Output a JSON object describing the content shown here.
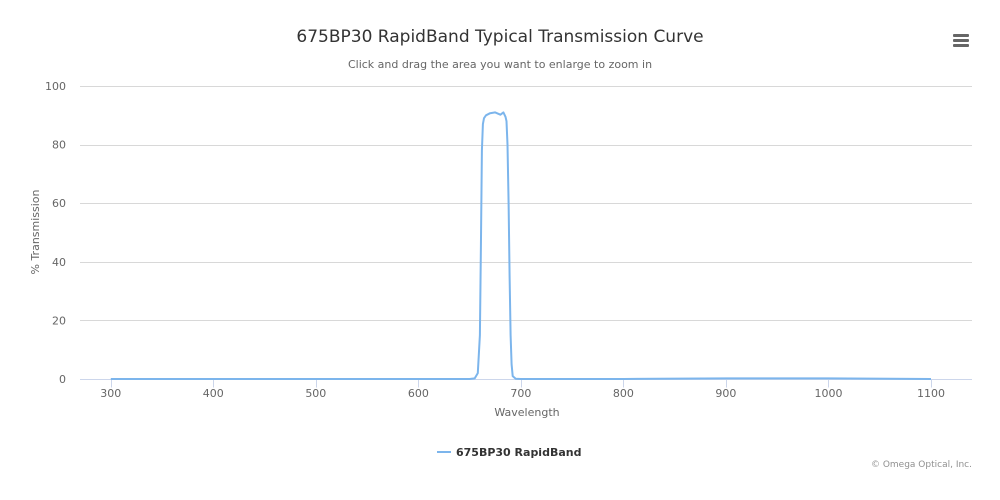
{
  "header": {
    "menu_icon": "hamburger-menu-icon"
  },
  "credits": "© Omega Optical, Inc.",
  "colors": {
    "series": "#7cb5ec",
    "grid": "#d8d8d8",
    "axis": "#ccd6eb"
  },
  "chart_data": {
    "type": "line",
    "title": "675BP30 RapidBand Typical Transmission Curve",
    "subtitle": "Click and drag the area you want to enlarge to zoom in",
    "xlabel": "Wavelength",
    "ylabel": "% Transmission",
    "xlim": [
      270,
      1140
    ],
    "ylim": [
      0,
      100
    ],
    "xticks": [
      300,
      400,
      500,
      600,
      700,
      800,
      900,
      1000,
      1100
    ],
    "yticks": [
      0,
      20,
      40,
      60,
      80,
      100
    ],
    "grid": true,
    "legend_position": "bottom-center",
    "series": [
      {
        "name": "675BP30 RapidBand",
        "x": [
          300,
          400,
          500,
          600,
          650,
          655,
          658,
          660,
          661,
          662,
          663,
          664,
          666,
          670,
          675,
          680,
          683,
          685,
          686,
          687,
          688,
          689,
          690,
          691,
          692,
          695,
          700,
          800,
          900,
          1000,
          1100
        ],
        "y": [
          0,
          0,
          0,
          0,
          0,
          0.2,
          2,
          15,
          45,
          78,
          87,
          89,
          90,
          90.7,
          91,
          90.2,
          91,
          89.5,
          88,
          80,
          60,
          35,
          15,
          5,
          1,
          0.1,
          0,
          0,
          0.2,
          0.2,
          0
        ]
      }
    ]
  }
}
